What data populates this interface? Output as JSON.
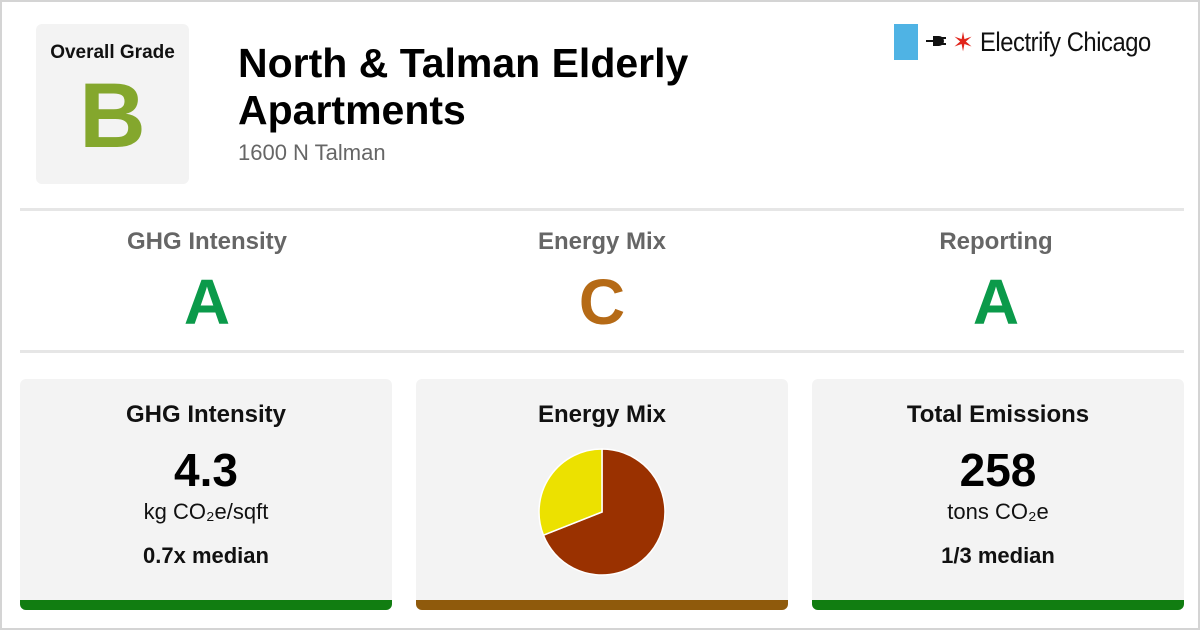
{
  "header": {
    "overall_label": "Overall Grade",
    "overall_grade": "B",
    "overall_color": "#84a72d",
    "title_line1": "North & Talman Elderly",
    "title_line2": "Apartments",
    "address": "1600 N Talman"
  },
  "brand": {
    "name": "Electrify Chicago",
    "flag_color": "#4fb3e4",
    "star_color": "#e1251b",
    "icons": [
      "plug-icon",
      "chicago-star-icon"
    ]
  },
  "subgrades": [
    {
      "label": "GHG Intensity",
      "grade": "A",
      "color": "#0b9a4a"
    },
    {
      "label": "Energy Mix",
      "grade": "C",
      "color": "#b56a16"
    },
    {
      "label": "Reporting",
      "grade": "A",
      "color": "#0b9a4a"
    }
  ],
  "cards": {
    "ghg": {
      "title": "GHG Intensity",
      "value": "4.3",
      "unit": "kg CO₂e/sqft",
      "median": "0.7x median",
      "bar_color": "#117d11"
    },
    "energy": {
      "title": "Energy Mix",
      "bar_color": "#8f5a0c"
    },
    "emissions": {
      "title": "Total Emissions",
      "value": "258",
      "unit": "tons CO₂e",
      "median": "1/3 median",
      "bar_color": "#117d11"
    }
  },
  "chart_data": {
    "type": "pie",
    "values": [
      69,
      31
    ],
    "colors": [
      "#9a3100",
      "#ece100"
    ]
  }
}
